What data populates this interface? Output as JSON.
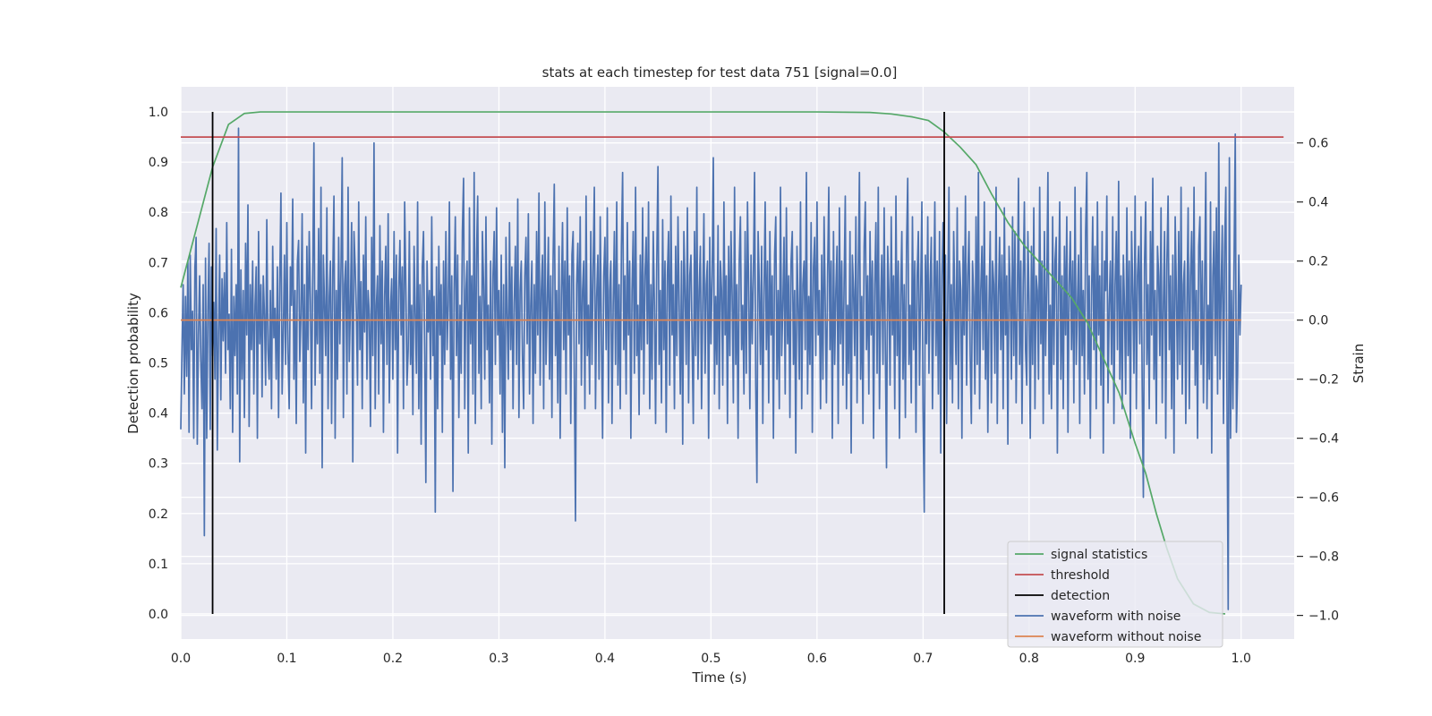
{
  "chart_data": {
    "type": "line",
    "title": "stats at each timestep for test data 751 [signal=0.0]",
    "xlabel": "Time (s)",
    "ylabel": "Detection probability",
    "y2label": "Strain",
    "xlim": [
      0.0,
      1.05
    ],
    "ylim": [
      -0.05,
      1.05
    ],
    "y2lim": [
      -1.08,
      0.79
    ],
    "grid": true,
    "legend_position": "lower-right",
    "xticks": [
      "0.0",
      "0.1",
      "0.2",
      "0.3",
      "0.4",
      "0.5",
      "0.6",
      "0.7",
      "0.8",
      "0.9",
      "1.0"
    ],
    "yticks": [
      "0.0",
      "0.1",
      "0.2",
      "0.3",
      "0.4",
      "0.5",
      "0.6",
      "0.7",
      "0.8",
      "0.9",
      "1.0"
    ],
    "y2ticks": [
      "−1.0",
      "−0.8",
      "−0.6",
      "−0.4",
      "−0.2",
      "0.0",
      "0.2",
      "0.4",
      "0.6"
    ],
    "series": [
      {
        "name": "signal statistics",
        "axis": "left",
        "color": "#55a868",
        "x": [
          0.0,
          0.015,
          0.03,
          0.045,
          0.06,
          0.075,
          0.09,
          0.2,
          0.4,
          0.6,
          0.65,
          0.67,
          0.69,
          0.705,
          0.72,
          0.735,
          0.75,
          0.765,
          0.78,
          0.795,
          0.81,
          0.825,
          0.84,
          0.855,
          0.87,
          0.885,
          0.9,
          0.91,
          0.92,
          0.93,
          0.94,
          0.955,
          0.97,
          0.985
        ],
        "values": [
          0.65,
          0.77,
          0.89,
          0.975,
          0.997,
          1.0,
          1.0,
          1.0,
          1.0,
          1.0,
          0.999,
          0.996,
          0.99,
          0.983,
          0.96,
          0.93,
          0.895,
          0.835,
          0.78,
          0.735,
          0.7,
          0.665,
          0.63,
          0.58,
          0.51,
          0.44,
          0.34,
          0.28,
          0.2,
          0.13,
          0.07,
          0.02,
          0.003,
          0.0
        ]
      },
      {
        "name": "threshold",
        "axis": "left",
        "color": "#c44e52",
        "x": [
          0.0,
          1.04
        ],
        "values": [
          0.95,
          0.95
        ]
      },
      {
        "name": "detection",
        "axis": "left",
        "color": "#000000",
        "type": "vlines",
        "x": [
          0.03,
          0.72
        ],
        "values": [
          [
            0.0,
            1.0
          ],
          [
            0.0,
            1.0
          ]
        ]
      },
      {
        "name": "waveform with noise",
        "axis": "right",
        "color": "#4c72b0",
        "x_start": 0.0,
        "x_end": 1.0,
        "values": [
          -0.37,
          -0.1,
          0.12,
          -0.25,
          0.08,
          -0.19,
          0.2,
          -0.38,
          0.22,
          -0.1,
          0.03,
          -0.4,
          0.18,
          0.28,
          -0.42,
          -0.05,
          0.15,
          -0.14,
          -0.3,
          0.12,
          -0.73,
          0.21,
          -0.4,
          0.03,
          0.26,
          -0.37,
          0.18,
          -0.12,
          0.06,
          -0.2,
          0.31,
          -0.44,
          -0.05,
          0.22,
          -0.27,
          0.14,
          -0.07,
          0.16,
          -0.18,
          0.33,
          -0.1,
          0.02,
          -0.3,
          0.24,
          -0.38,
          0.08,
          -0.12,
          0.12,
          -0.25,
          0.65,
          -0.48,
          0.17,
          -0.2,
          0.1,
          -0.33,
          0.26,
          -0.05,
          0.39,
          -0.36,
          0.12,
          -0.1,
          0.2,
          -0.25,
          0.05,
          0.18,
          -0.4,
          0.3,
          -0.08,
          0.12,
          -0.26,
          0.15,
          0.02,
          -0.22,
          0.34,
          -0.1,
          -0.2,
          0.1,
          -0.3,
          0.25,
          -0.06,
          0.04,
          -0.2,
          0.18,
          -0.33,
          0.12,
          0.43,
          -0.25,
          -0.05,
          0.22,
          -0.15,
          0.33,
          -0.11,
          -0.3,
          0.18,
          0.05,
          0.41,
          -0.2,
          0.1,
          -0.35,
          0.2,
          0.27,
          -0.14,
          0.02,
          0.36,
          -0.28,
          0.12,
          -0.45,
          0.25,
          -0.1,
          0.3,
          0.07,
          -0.3,
          0.15,
          0.6,
          -0.22,
          0.1,
          -0.08,
          0.31,
          -0.18,
          0.45,
          -0.5,
          0.22,
          0.05,
          -0.12,
          0.38,
          -0.3,
          0.08,
          0.2,
          -0.35,
          0.16,
          0.42,
          -0.4,
          0.1,
          -0.2,
          0.28,
          -0.08,
          0.18,
          0.55,
          -0.33,
          0.12,
          0.2,
          -0.25,
          0.45,
          -0.14,
          0.05,
          0.33,
          -0.48,
          0.3,
          0.18,
          0.03,
          -0.22,
          0.4,
          -0.1,
          0.13,
          -0.3,
          0.22,
          -0.04,
          0.35,
          -0.2,
          0.1,
          0.02,
          -0.36,
          0.28,
          -0.12,
          0.6,
          -0.3,
          0.05,
          0.15,
          -0.25,
          0.32,
          -0.08,
          0.2,
          -0.38,
          0.08,
          0.25,
          -0.15,
          0.36,
          -0.28,
          0.04,
          0.14,
          -0.2,
          0.3,
          -0.1,
          0.22,
          -0.45,
          0.1,
          0.27,
          -0.05,
          0.18,
          -0.3,
          0.4,
          0.12,
          -0.22,
          -0.1,
          0.3,
          -0.15,
          0.05,
          -0.32,
          0.25,
          0.02,
          -0.18,
          0.4,
          -0.3,
          0.12,
          -0.42,
          0.18,
          0.3,
          -0.1,
          -0.55,
          0.2,
          -0.04,
          0.1,
          -0.2,
          0.35,
          -0.12,
          0.08,
          -0.65,
          0.18,
          -0.3,
          0.25,
          -0.05,
          0.12,
          -0.38,
          0.2,
          -0.15,
          0.3,
          -0.1,
          0.05,
          0.4,
          -0.2,
          0.15,
          -0.58,
          0.1,
          0.35,
          -0.12,
          0.22,
          -0.33,
          0.05,
          -0.18,
          0.3,
          0.48,
          -0.3,
          0.1,
          0.2,
          -0.45,
          0.38,
          -0.08,
          0.15,
          -0.25,
          0.5,
          -0.35,
          0.22,
          0.42,
          -0.18,
          0.08,
          -0.3,
          0.3,
          0.12,
          -0.2,
          0.35,
          -0.1,
          0.05,
          -0.28,
          0.2,
          -0.42,
          0.15,
          0.3,
          -0.15,
          0.38,
          -0.05,
          0.1,
          -0.25,
          0.22,
          -0.38,
          0.12,
          -0.5,
          0.28,
          0.02,
          -0.2,
          0.33,
          -0.1,
          0.18,
          -0.3,
          0.06,
          0.25,
          -0.15,
          0.41,
          -0.33,
          0.1,
          0.2,
          -0.12,
          -0.3,
          0.15,
          0.28,
          -0.08,
          0.36,
          -0.25,
          0.05,
          0.2,
          -0.35,
          0.12,
          -0.18,
          0.3,
          -0.05,
          0.43,
          -0.22,
          0.1,
          0.22,
          -0.3,
          0.4,
          -0.15,
          0.05,
          0.28,
          -0.2,
          0.15,
          -0.33,
          0.2,
          0.46,
          -0.12,
          0.1,
          -0.28,
          0.25,
          -0.4,
          0.08,
          0.33,
          -0.1,
          0.2,
          -0.25,
          0.38,
          -0.05,
          0.15,
          -0.35,
          0.22,
          0.3,
          -0.18,
          -0.68,
          0.12,
          0.26,
          -0.08,
          0.35,
          -0.22,
          0.1,
          0.2,
          -0.3,
          0.42,
          -0.12,
          0.05,
          -0.25,
          0.3,
          -0.15,
          0.18,
          0.45,
          -0.3,
          0.08,
          0.22,
          -0.2,
          0.35,
          -0.05,
          -0.4,
          0.15,
          0.28,
          -0.1,
          0.38,
          -0.28,
          0.1,
          0.2,
          -0.35,
          0.05,
          0.3,
          -0.15,
          0.4,
          -0.22,
          0.12,
          -0.3,
          0.25,
          0.5,
          -0.1,
          0.15,
          -0.25,
          0.33,
          -0.05,
          0.2,
          -0.4,
          0.1,
          0.3,
          -0.18,
          0.45,
          -0.12,
          0.05,
          -0.32,
          0.22,
          -0.1,
          0.38,
          -0.25,
          0.15,
          0.28,
          -0.08,
          0.4,
          -0.3,
          0.12,
          -0.2,
          0.3,
          0.05,
          -0.35,
          0.2,
          0.52,
          -0.15,
          0.1,
          -0.28,
          0.34,
          -0.1,
          0.2,
          -0.38,
          0.15,
          0.3,
          -0.22,
          0.42,
          -0.05,
          0.12,
          -0.3,
          0.25,
          -0.12,
          0.35,
          0.05,
          -0.25,
          0.2,
          -0.42,
          0.3,
          0.1,
          -0.15,
          0.38,
          -0.28,
          0.15,
          0.22,
          -0.08,
          -0.35,
          0.3,
          -0.12,
          0.45,
          -0.2,
          0.1,
          0.25,
          -0.3,
          0.05,
          0.36,
          -0.18,
          0.12,
          0.2,
          -0.4,
          0.28,
          -0.08,
          0.15,
          0.55,
          -0.25,
          0.08,
          -0.15,
          0.32,
          -0.3,
          0.2,
          0.1,
          -0.22,
          0.4,
          -0.05,
          0.15,
          -0.35,
          0.25,
          -0.12,
          0.3,
          0.08,
          -0.28,
          0.45,
          -0.15,
          0.12,
          -0.4,
          0.2,
          0.35,
          -0.1,
          0.05,
          -0.25,
          0.3,
          -0.18,
          0.4,
          0.1,
          -0.3,
          0.22,
          -0.08,
          0.15,
          0.5,
          -0.22,
          -0.55,
          0.3,
          0.12,
          -0.15,
          0.25,
          -0.35,
          0.08,
          0.4,
          -0.1,
          0.2,
          -0.28,
          0.3,
          -0.05,
          0.15,
          -0.4,
          0.22,
          0.35,
          -0.2,
          0.1,
          -0.3,
          0.45,
          -0.12,
          0.05,
          0.28,
          -0.25,
          0.38,
          -0.08,
          0.15,
          -0.33,
          0.2,
          0.3,
          -0.15,
          0.1,
          -0.45,
          0.25,
          0.05,
          -0.2,
          0.4,
          -0.3,
          0.12,
          0.2,
          -0.1,
          0.5,
          -0.25,
          0.08,
          -0.15,
          0.33,
          -0.38,
          0.18,
          0.28,
          -0.12,
          0.4,
          -0.05,
          0.1,
          -0.3,
          0.22,
          -0.2,
          0.35,
          0.05,
          -0.28,
          0.15,
          0.45,
          -0.1,
          0.2,
          -0.4,
          0.3,
          -0.15,
          0.1,
          0.25,
          -0.35,
          0.38,
          -0.08,
          0.2,
          -0.22,
          0.12,
          0.42,
          -0.3,
          0.05,
          -0.18,
          0.3,
          -0.45,
          0.22,
          0.1,
          -0.12,
          0.35,
          -0.28,
          0.15,
          0.5,
          -0.2,
          0.08,
          -0.35,
          0.25,
          0.4,
          -0.1,
          0.15,
          -0.25,
          0.3,
          -0.05,
          0.2,
          -0.4,
          0.12,
          0.33,
          -0.18,
          0.45,
          -0.3,
          0.05,
          0.22,
          -0.15,
          0.38,
          -0.1,
          -0.5,
          0.25,
          0.1,
          -0.22,
          0.35,
          -0.05,
          0.15,
          -0.3,
          0.42,
          -0.12,
          0.2,
          -0.4,
          0.08,
          0.3,
          -0.2,
          0.12,
          -0.33,
          0.25,
          0.48,
          -0.15,
          0.05,
          -0.28,
          0.35,
          -0.1,
          0.2,
          -0.38,
          0.15,
          0.3,
          -0.22,
          0.1,
          0.4,
          -0.3,
          -0.65,
          0.22,
          -0.08,
          0.35,
          -0.18,
          0.12,
          0.28,
          -0.3,
          0.05,
          0.4,
          -0.12,
          0.2,
          -0.25,
          0.3,
          -0.45,
          0.15,
          0.33,
          -0.1,
          0.22,
          -0.35,
          0.08,
          0.45,
          -0.2,
          0.12,
          -0.28,
          0.3,
          0.05,
          -0.15,
          0.38,
          -0.3,
          0.2,
          0.1,
          -0.4,
          0.25,
          -0.05,
          0.42,
          -0.22,
          0.15,
          0.3,
          -0.12,
          -0.35,
          0.2,
          0.08,
          -0.25,
          0.35,
          -0.15,
          0.5,
          -0.3,
          0.1,
          0.25,
          -0.1,
          0.4,
          -0.2,
          0.15,
          -0.38,
          0.05,
          0.3,
          -0.28,
          0.2,
          0.12,
          -0.18,
          0.45,
          -0.35,
          0.08,
          0.28,
          -0.1,
          0.22,
          -0.3,
          0.38,
          -0.05,
          0.15,
          -0.42,
          0.25,
          0.1,
          -0.2,
          0.35,
          -0.12,
          0.3,
          -0.28,
          0.05,
          0.48,
          -0.15,
          0.2,
          -0.35,
          0.12,
          0.4,
          -0.1,
          -0.22,
          0.3,
          0.05,
          -0.4,
          0.25,
          -0.15,
          0.38,
          -0.3,
          0.15,
          0.1,
          -0.2,
          0.45,
          -0.08,
          0.2,
          -0.35,
          0.3,
          -0.12,
          0.12,
          0.5,
          -0.25,
          0.05,
          -0.3,
          0.35,
          -0.15,
          0.2,
          0.28,
          -0.45,
          0.1,
          0.4,
          -0.2,
          0.15,
          -0.3,
          0.25,
          -0.05,
          0.35,
          -0.38,
          0.12,
          0.3,
          -0.1,
          0.2,
          -0.28,
          0.45,
          -0.15,
          0.05,
          0.22,
          -0.35,
          0.38,
          -0.12,
          0.1,
          -0.25,
          0.3,
          0.5,
          -0.2,
          0.15,
          -0.4,
          0.08,
          0.35,
          -0.1,
          0.25,
          -0.3,
          0.4,
          -0.05,
          0.15,
          -0.22,
          0.3,
          -0.45,
          0.2,
          0.1,
          0.42,
          -0.28,
          0.05,
          0.2,
          -0.15,
          0.35,
          -0.35,
          0.12,
          0.3,
          -0.1,
          0.47,
          -0.2,
          0.15,
          -0.3,
          0.22,
          0.05,
          -0.25,
          0.38,
          -0.12,
          0.2,
          -0.4,
          0.3,
          0.1,
          -0.18,
          0.42,
          -0.3,
          0.15,
          0.25,
          -0.08,
          0.35,
          -0.22,
          -0.6,
          0.2,
          0.4,
          -0.15,
          0.12,
          -0.3,
          0.3,
          -0.05,
          0.48,
          -0.2,
          0.1,
          -0.35,
          0.25,
          0.15,
          -0.12,
          0.38,
          -0.28,
          0.05,
          0.3,
          -0.4,
          0.2,
          0.42,
          -0.1,
          0.15,
          -0.3,
          0.22,
          -0.45,
          0.35,
          0.1,
          -0.2,
          0.3,
          -0.15,
          0.45,
          -0.25,
          0.12,
          0.2,
          -0.35,
          0.05,
          0.38,
          -0.3,
          0.15,
          0.3,
          -0.1,
          0.45,
          -0.22,
          0.1,
          -0.4,
          0.25,
          0.35,
          -0.15,
          0.2,
          -0.28,
          0.12,
          0.5,
          -0.3,
          0.05,
          -0.2,
          0.4,
          -0.45,
          0.15,
          0.3,
          -0.12,
          0.38,
          -0.25,
          0.6,
          -0.2,
          0.1,
          0.32,
          -0.35,
          0.25,
          0.45,
          -0.28,
          -0.98,
          0.55,
          -0.4,
          0.1,
          -0.3,
          0.2,
          0.63,
          -0.38,
          -0.18,
          0.22,
          -0.05,
          0.12
        ]
      },
      {
        "name": "waveform without noise",
        "axis": "right",
        "color": "#dd8452",
        "x": [
          0.0,
          1.0
        ],
        "values": [
          0.0,
          0.0
        ]
      }
    ]
  }
}
